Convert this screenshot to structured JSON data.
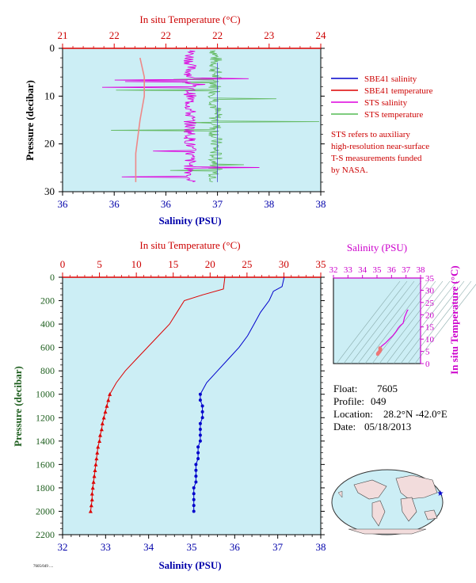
{
  "top_chart": {
    "title_top": "In situ Temperature (°C)",
    "xlabel": "Salinity (PSU)",
    "ylabel": "Pressure (decibar)",
    "temp_ticks": [
      "21",
      "22",
      "22",
      "22",
      "23",
      "24"
    ],
    "sal_ticks": [
      "36",
      "36",
      "36",
      "37",
      "38",
      "38"
    ],
    "p_ticks": [
      "0",
      "10",
      "20",
      "30"
    ],
    "legend": [
      {
        "label": "SBE41 salinity",
        "color": "#0000cc"
      },
      {
        "label": "SBE41 temperature",
        "color": "#dd0000"
      },
      {
        "label": "STS salinity",
        "color": "#dd00dd"
      },
      {
        "label": "STS temperature",
        "color": "#55bb55"
      }
    ],
    "note": [
      "STS refers to auxiliary",
      "high-resolution near-surface",
      "T-S measurements funded",
      "by NASA."
    ]
  },
  "bottom_chart": {
    "title_top": "In situ Temperature (°C)",
    "xlabel": "Salinity (PSU)",
    "ylabel": "Pressure (decibar)",
    "temp_ticks": [
      "0",
      "5",
      "10",
      "15",
      "20",
      "25",
      "30",
      "35"
    ],
    "sal_ticks": [
      "32",
      "33",
      "34",
      "35",
      "36",
      "37",
      "38"
    ],
    "p_ticks": [
      "0",
      "200",
      "400",
      "600",
      "800",
      "1000",
      "1200",
      "1400",
      "1600",
      "1800",
      "2000",
      "2200"
    ]
  },
  "ts_inset": {
    "title": "Salinity (PSU)",
    "ylabel": "In situ Temperature (°C)",
    "x_ticks": [
      "32",
      "33",
      "34",
      "35",
      "36",
      "37",
      "38"
    ],
    "y_ticks": [
      "0",
      "5",
      "10",
      "15",
      "20",
      "25",
      "30",
      "35"
    ]
  },
  "float_info": {
    "float_label": "Float:",
    "float_value": "7605",
    "profile_label": "Profile:",
    "profile_value": "049",
    "location_label": "Location:",
    "location_value": "28.2°N  -42.0°E",
    "date_label": "Date:",
    "date_value": "05/18/2013"
  },
  "footer_small": "7605/049 ....",
  "colors": {
    "plot_bg": "#cceef5",
    "temp_axis": "#dd0000",
    "sal_axis": "#0000cc",
    "sts_salinity": "#dd00dd",
    "sts_temperature": "#66bb66",
    "pressure_axis": "#1f5f1f",
    "inset_axis": "#cc00cc"
  },
  "chart_data": [
    {
      "type": "line",
      "name": "top",
      "x_range_salinity": [
        36,
        38
      ],
      "x_range_temperature": [
        21,
        24
      ],
      "ylim": [
        30,
        0
      ],
      "series": [
        {
          "name": "SBE41 temperature",
          "x": [
            21.9,
            21.95,
            21.95,
            21.9,
            21.85,
            21.85
          ],
          "y": [
            2,
            6,
            10,
            15,
            22,
            28
          ],
          "axis": "temperature"
        },
        {
          "name": "SBE41 salinity",
          "x": [
            37.2,
            37.2,
            37.2,
            37.2,
            37.2
          ],
          "y": [
            3,
            8,
            15,
            22,
            28
          ],
          "axis": "salinity"
        }
      ]
    },
    {
      "type": "line",
      "name": "bottom",
      "xlim_salinity": [
        32,
        38
      ],
      "xlim_temperature": [
        0,
        35
      ],
      "ylim": [
        2200,
        0
      ],
      "series": [
        {
          "name": "SBE41 temperature",
          "axis": "temperature",
          "y": [
            0,
            100,
            150,
            200,
            300,
            400,
            500,
            600,
            700,
            800,
            900,
            1000,
            1050,
            1100,
            1150,
            1200,
            1250,
            1300,
            1350,
            1400,
            1450,
            1500,
            1550,
            1600,
            1650,
            1700,
            1750,
            1800,
            1850,
            1900,
            1950,
            2000
          ],
          "x": [
            22,
            21.8,
            19,
            16.5,
            15.5,
            14.5,
            13,
            11.5,
            10,
            8.5,
            7.3,
            6.4,
            6.2,
            6.0,
            5.8,
            5.6,
            5.4,
            5.3,
            5.1,
            5.0,
            4.8,
            4.7,
            4.6,
            4.5,
            4.4,
            4.3,
            4.2,
            4.1,
            4.0,
            4.0,
            3.9,
            3.8
          ]
        },
        {
          "name": "SBE41 salinity",
          "axis": "salinity",
          "y": [
            0,
            80,
            120,
            200,
            300,
            400,
            500,
            600,
            700,
            800,
            900,
            1000,
            1050,
            1100,
            1150,
            1200,
            1250,
            1300,
            1350,
            1400,
            1450,
            1500,
            1550,
            1600,
            1650,
            1700,
            1750,
            1800,
            1850,
            1900,
            1950,
            2000
          ],
          "x": [
            37.15,
            37.1,
            36.9,
            36.8,
            36.6,
            36.45,
            36.3,
            36.1,
            35.85,
            35.6,
            35.35,
            35.2,
            35.2,
            35.25,
            35.25,
            35.25,
            35.2,
            35.2,
            35.2,
            35.2,
            35.15,
            35.15,
            35.15,
            35.1,
            35.1,
            35.1,
            35.1,
            35.05,
            35.05,
            35.05,
            35.05,
            35.05
          ]
        }
      ]
    }
  ]
}
